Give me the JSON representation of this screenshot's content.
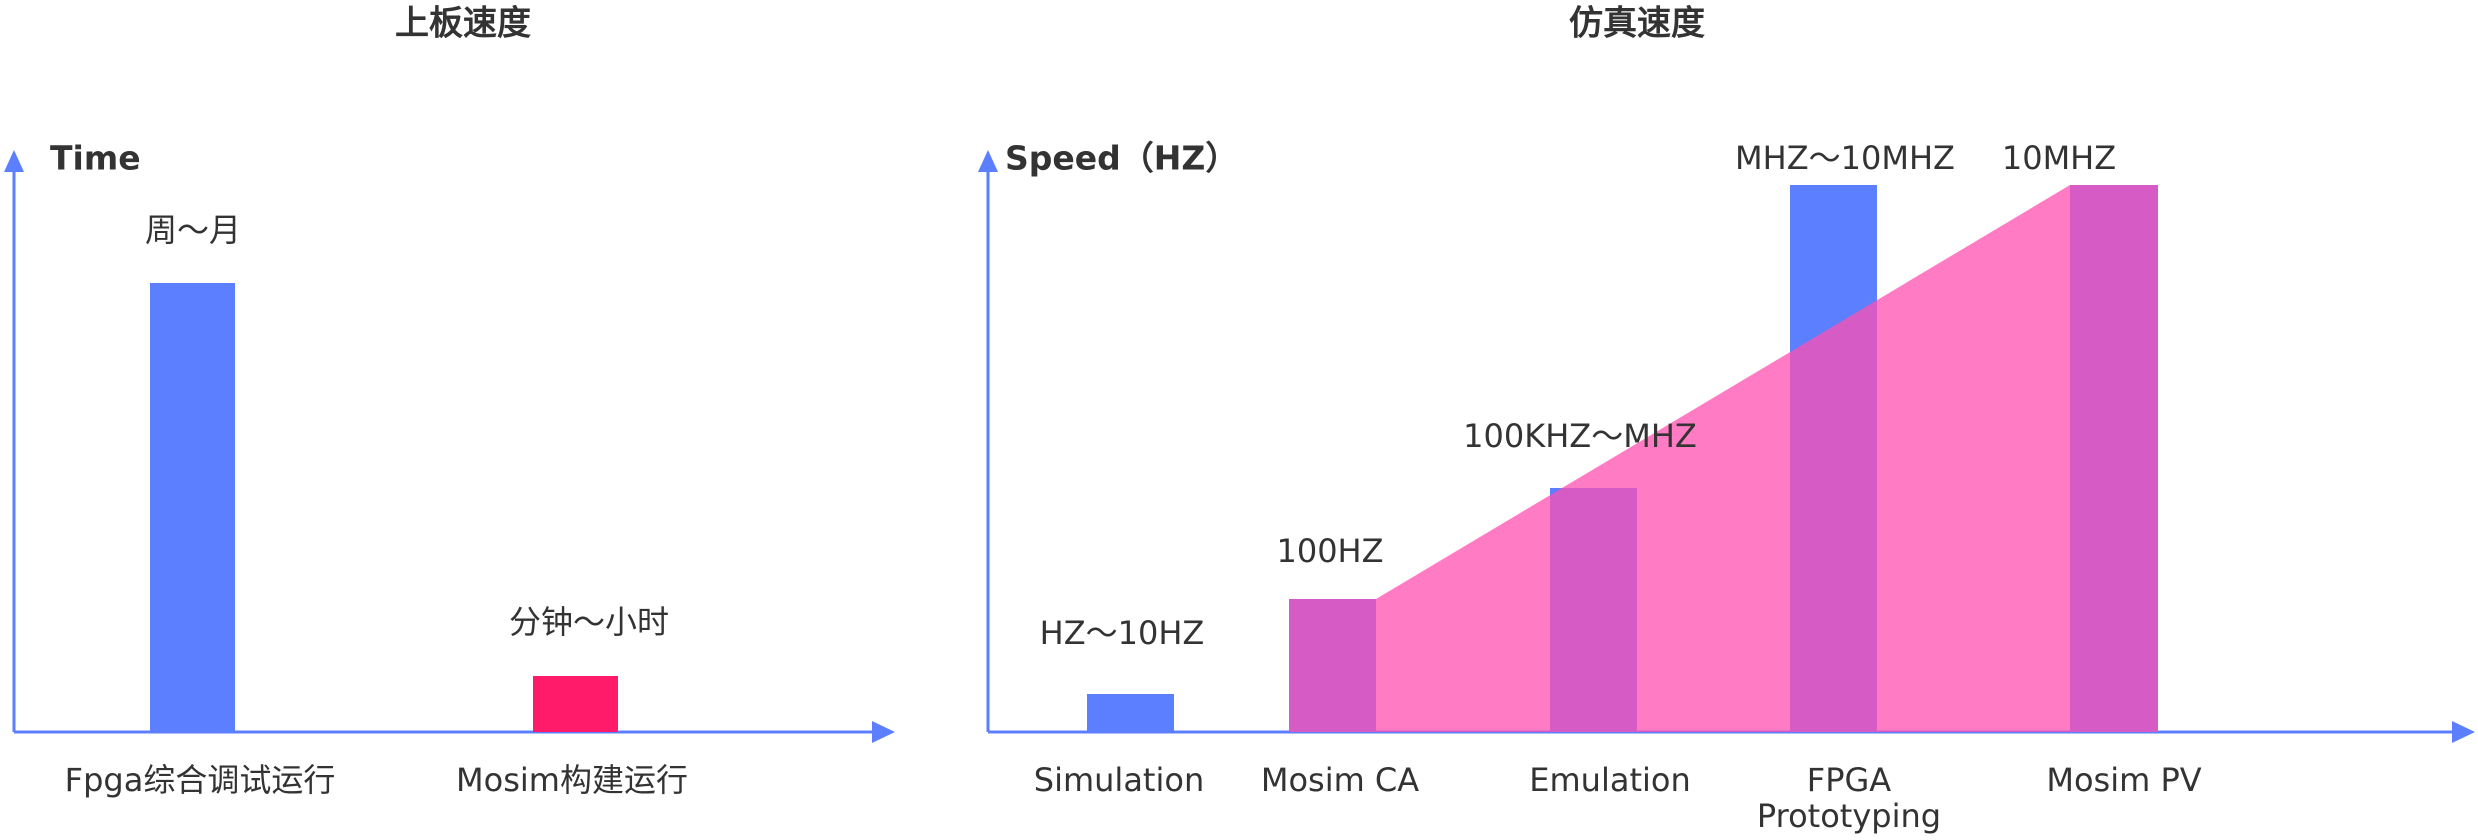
{
  "left": {
    "title": "上板速度",
    "axis_label": "Time",
    "categories": [
      "Fpga综合调试运行",
      "Mosim构建运行"
    ],
    "bar_labels": [
      "周～月",
      "分钟～小时"
    ]
  },
  "right": {
    "title": "仿真速度",
    "axis_label": "Speed（HZ）",
    "categories": [
      "Simulation",
      "Mosim CA",
      "Emulation",
      [
        "FPGA",
        "Prototyping"
      ],
      "Mosim PV"
    ],
    "bar_labels": [
      "HZ～10HZ",
      "100HZ",
      "100KHZ～MHZ",
      "MHZ～10MHZ",
      "10MHZ"
    ]
  }
}
